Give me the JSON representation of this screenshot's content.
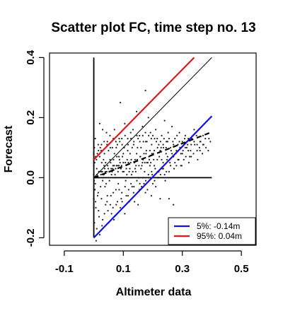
{
  "chart_data": {
    "type": "scatter",
    "title": "Scatter plot FC, time step no. 13",
    "xlabel": "Altimeter data",
    "ylabel": "Forecast",
    "xlim": [
      -0.15,
      0.55
    ],
    "ylim": [
      -0.225,
      0.415
    ],
    "x_ticks": [
      -0.1,
      0.1,
      0.3,
      0.5
    ],
    "x_tick_labels": [
      "-0.1",
      "0.1",
      "0.3",
      "0.5"
    ],
    "y_ticks": [
      -0.2,
      0.0,
      0.2,
      0.4
    ],
    "y_tick_labels": [
      "-0.2",
      "0.0",
      "0.2",
      "0.4"
    ],
    "grid": false,
    "legend": {
      "placement": "bottom-right",
      "entries": [
        {
          "label": "5%: -0.14m",
          "color": "#1010e0"
        },
        {
          "label": "95%:  0.04m",
          "color": "#dd1a1a"
        }
      ]
    },
    "reference_lines": [
      {
        "kind": "vertical",
        "x": 0.0,
        "y_from": -0.2,
        "y_to": 0.4,
        "color": "#000000",
        "style": "solid"
      },
      {
        "kind": "horizontal",
        "y": 0.0,
        "x_from": 0.0,
        "x_to": 0.4,
        "color": "#000000",
        "style": "solid"
      },
      {
        "kind": "segment",
        "x1": 0.0,
        "y1": 0.0,
        "x2": 0.4,
        "y2": 0.4,
        "color": "#000000",
        "style": "solid",
        "width": 1
      },
      {
        "kind": "segment",
        "x1": 0.0,
        "y1": 0.06,
        "x2": 0.34,
        "y2": 0.4,
        "color": "#dd1a1a",
        "style": "solid",
        "width": 2.2
      },
      {
        "kind": "segment",
        "x1": 0.0,
        "y1": -0.2,
        "x2": 0.4,
        "y2": 0.205,
        "color": "#1010e0",
        "style": "solid",
        "width": 2.2
      },
      {
        "kind": "segment",
        "x1": 0.0,
        "y1": 0.0,
        "x2": 0.4,
        "y2": 0.152,
        "color": "#000000",
        "style": "dashed",
        "width": 2.2
      }
    ],
    "points": [
      [
        0.0,
        0.01
      ],
      [
        0.005,
        -0.02
      ],
      [
        0.01,
        0.03
      ],
      [
        0.015,
        -0.05
      ],
      [
        0.02,
        0.07
      ],
      [
        0.025,
        0.02
      ],
      [
        0.03,
        -0.01
      ],
      [
        0.035,
        0.12
      ],
      [
        0.04,
        0.05
      ],
      [
        0.045,
        -0.08
      ],
      [
        0.05,
        0.09
      ],
      [
        0.055,
        0.14
      ],
      [
        0.06,
        -0.12
      ],
      [
        0.065,
        0.04
      ],
      [
        0.07,
        0.16
      ],
      [
        0.075,
        -0.04
      ],
      [
        0.08,
        0.11
      ],
      [
        0.085,
        0.07
      ],
      [
        0.09,
        -0.1
      ],
      [
        0.095,
        0.13
      ],
      [
        0.1,
        0.05
      ],
      [
        0.105,
        0.18
      ],
      [
        0.11,
        -0.06
      ],
      [
        0.115,
        0.09
      ],
      [
        0.12,
        0.02
      ],
      [
        0.125,
        0.15
      ],
      [
        0.13,
        -0.03
      ],
      [
        0.135,
        0.11
      ],
      [
        0.14,
        0.06
      ],
      [
        0.145,
        0.22
      ],
      [
        0.15,
        -0.09
      ],
      [
        0.155,
        0.14
      ],
      [
        0.16,
        0.03
      ],
      [
        0.165,
        0.17
      ],
      [
        0.17,
        0.08
      ],
      [
        0.175,
        -0.05
      ],
      [
        0.18,
        0.12
      ],
      [
        0.185,
        0.2
      ],
      [
        0.19,
        0.04
      ],
      [
        0.195,
        0.13
      ],
      [
        0.2,
        -0.02
      ],
      [
        0.205,
        0.09
      ],
      [
        0.21,
        0.16
      ],
      [
        0.215,
        0.06
      ],
      [
        0.22,
        0.11
      ],
      [
        0.225,
        -0.07
      ],
      [
        0.23,
        0.14
      ],
      [
        0.235,
        0.05
      ],
      [
        0.24,
        0.19
      ],
      [
        0.245,
        0.08
      ],
      [
        0.25,
        0.12
      ],
      [
        0.255,
        0.02
      ],
      [
        0.26,
        0.1
      ],
      [
        0.265,
        0.17
      ],
      [
        0.27,
        0.07
      ],
      [
        0.275,
        0.13
      ],
      [
        0.28,
        0.04
      ],
      [
        0.285,
        0.11
      ],
      [
        0.29,
        0.15
      ],
      [
        0.295,
        0.08
      ],
      [
        0.3,
        0.12
      ],
      [
        0.305,
        0.06
      ],
      [
        0.31,
        0.14
      ],
      [
        0.315,
        0.1
      ],
      [
        0.32,
        0.13
      ],
      [
        0.325,
        0.07
      ],
      [
        0.33,
        0.11
      ],
      [
        0.34,
        0.16
      ],
      [
        0.35,
        0.09
      ],
      [
        0.36,
        0.12
      ],
      [
        0.37,
        0.14
      ],
      [
        0.38,
        0.1
      ],
      [
        0.39,
        0.13
      ],
      [
        0.0,
        -0.07
      ],
      [
        0.003,
        0.05
      ],
      [
        0.007,
        -0.1
      ],
      [
        0.012,
        0.08
      ],
      [
        0.018,
        -0.13
      ],
      [
        0.022,
        0.1
      ],
      [
        0.028,
        -0.16
      ],
      [
        0.033,
        0.06
      ],
      [
        0.038,
        -0.03
      ],
      [
        0.043,
        0.15
      ],
      [
        0.048,
        -0.11
      ],
      [
        0.052,
        0.02
      ],
      [
        0.058,
        -0.06
      ],
      [
        0.063,
        0.1
      ],
      [
        0.068,
        -0.14
      ],
      [
        0.072,
        0.01
      ],
      [
        0.078,
        0.07
      ],
      [
        0.083,
        -0.02
      ],
      [
        0.088,
        0.12
      ],
      [
        0.093,
        -0.07
      ],
      [
        0.098,
        0.02
      ],
      [
        0.103,
        0.1
      ],
      [
        0.108,
        -0.01
      ],
      [
        0.113,
        0.06
      ],
      [
        0.118,
        -0.04
      ],
      [
        0.123,
        0.08
      ],
      [
        0.128,
        0.01
      ],
      [
        0.133,
        0.16
      ],
      [
        0.138,
        -0.08
      ],
      [
        0.143,
        0.04
      ],
      [
        0.148,
        0.1
      ],
      [
        0.152,
        0.0
      ],
      [
        0.158,
        0.07
      ],
      [
        0.162,
        -0.03
      ],
      [
        0.168,
        0.12
      ],
      [
        0.172,
        0.02
      ],
      [
        0.178,
        0.09
      ],
      [
        0.182,
        -0.04
      ],
      [
        0.188,
        0.06
      ],
      [
        0.192,
        0.15
      ],
      [
        0.198,
        0.01
      ],
      [
        0.202,
        0.08
      ],
      [
        0.208,
        0.03
      ],
      [
        0.212,
        0.12
      ],
      [
        0.218,
        0.0
      ],
      [
        0.222,
        0.07
      ],
      [
        0.228,
        0.1
      ],
      [
        0.232,
        0.03
      ],
      [
        0.238,
        0.13
      ],
      [
        0.242,
        -0.01
      ],
      [
        0.248,
        0.06
      ],
      [
        0.252,
        0.15
      ],
      [
        0.258,
        0.05
      ],
      [
        0.262,
        0.09
      ],
      [
        0.268,
        0.12
      ],
      [
        0.272,
        0.03
      ],
      [
        0.278,
        0.08
      ],
      [
        0.282,
        0.14
      ],
      [
        0.288,
        0.06
      ],
      [
        0.292,
        0.1
      ],
      [
        0.298,
        0.04
      ],
      [
        0.302,
        0.09
      ],
      [
        0.308,
        0.13
      ],
      [
        0.312,
        0.07
      ],
      [
        0.318,
        0.11
      ],
      [
        0.322,
        0.05
      ],
      [
        0.328,
        0.09
      ],
      [
        0.332,
        0.13
      ],
      [
        0.338,
        0.08
      ],
      [
        0.342,
        0.11
      ],
      [
        0.348,
        0.14
      ],
      [
        0.352,
        0.06
      ],
      [
        0.358,
        0.1
      ],
      [
        0.362,
        0.12
      ],
      [
        0.368,
        0.08
      ],
      [
        0.372,
        0.11
      ],
      [
        0.378,
        0.13
      ],
      [
        0.388,
        0.09
      ],
      [
        0.395,
        0.12
      ],
      [
        0.005,
        0.13
      ],
      [
        0.01,
        -0.17
      ],
      [
        0.015,
        0.11
      ],
      [
        0.02,
        -0.19
      ],
      [
        0.025,
        0.09
      ],
      [
        0.03,
        -0.14
      ],
      [
        0.035,
        0.04
      ],
      [
        0.04,
        -0.09
      ],
      [
        0.045,
        0.11
      ],
      [
        0.05,
        -0.15
      ],
      [
        0.055,
        0.06
      ],
      [
        0.06,
        0.01
      ],
      [
        0.065,
        -0.1
      ],
      [
        0.07,
        0.08
      ],
      [
        0.075,
        0.12
      ],
      [
        0.08,
        -0.08
      ],
      [
        0.085,
        0.04
      ],
      [
        0.09,
        0.15
      ],
      [
        0.095,
        -0.05
      ],
      [
        0.1,
        0.08
      ],
      [
        0.105,
        -0.12
      ],
      [
        0.11,
        0.03
      ],
      [
        0.115,
        0.13
      ],
      [
        0.12,
        -0.08
      ],
      [
        0.125,
        0.05
      ],
      [
        0.13,
        0.1
      ],
      [
        0.135,
        -0.05
      ],
      [
        0.14,
        0.03
      ],
      [
        0.145,
        0.08
      ],
      [
        0.15,
        0.13
      ],
      [
        0.155,
        -0.04
      ],
      [
        0.16,
        0.1
      ],
      [
        0.165,
        0.05
      ],
      [
        0.17,
        -0.02
      ],
      [
        0.175,
        0.15
      ],
      [
        0.18,
        0.05
      ],
      [
        0.185,
        0.01
      ],
      [
        0.19,
        0.09
      ],
      [
        0.195,
        -0.06
      ],
      [
        0.2,
        0.14
      ],
      [
        0.205,
        0.04
      ],
      [
        0.21,
        -0.03
      ],
      [
        0.215,
        0.13
      ],
      [
        0.22,
        0.02
      ],
      [
        0.225,
        0.09
      ],
      [
        0.23,
        0.06
      ],
      [
        0.235,
        0.11
      ],
      [
        0.24,
        0.01
      ],
      [
        0.245,
        0.1
      ],
      [
        0.25,
        0.07
      ],
      [
        0.255,
        0.13
      ],
      [
        0.26,
        0.04
      ],
      [
        0.265,
        0.08
      ],
      [
        0.27,
        0.11
      ],
      [
        0.275,
        0.05
      ],
      [
        0.28,
        0.09
      ],
      [
        0.285,
        0.06
      ],
      [
        0.29,
        0.12
      ],
      [
        0.295,
        0.04
      ],
      [
        0.3,
        0.08
      ],
      [
        0.31,
        0.1
      ],
      [
        0.32,
        0.09
      ],
      [
        0.33,
        0.07
      ],
      [
        0.34,
        0.12
      ],
      [
        0.35,
        0.11
      ],
      [
        0.36,
        0.09
      ],
      [
        0.37,
        0.11
      ],
      [
        0.175,
        0.29
      ],
      [
        0.09,
        0.25
      ],
      [
        0.008,
        -0.21
      ],
      [
        0.27,
        -0.09
      ],
      [
        0.255,
        -0.07
      ],
      [
        0.02,
        0.18
      ],
      [
        0.03,
        0.16
      ],
      [
        0.0,
        0.04
      ],
      [
        0.004,
        -0.04
      ],
      [
        0.009,
        0.06
      ],
      [
        0.013,
        -0.06
      ],
      [
        0.017,
        0.02
      ],
      [
        0.023,
        -0.03
      ],
      [
        0.027,
        0.05
      ],
      [
        0.032,
        0.0
      ],
      [
        0.037,
        0.03
      ],
      [
        0.042,
        -0.02
      ],
      [
        0.047,
        0.04
      ],
      [
        0.053,
        -0.01
      ],
      [
        0.057,
        0.05
      ],
      [
        0.062,
        0.02
      ],
      [
        0.067,
        0.06
      ],
      [
        0.073,
        0.0
      ],
      [
        0.077,
        0.04
      ],
      [
        0.082,
        0.02
      ],
      [
        0.087,
        0.06
      ],
      [
        0.092,
        0.03
      ],
      [
        0.097,
        0.07
      ],
      [
        0.102,
        0.02
      ],
      [
        0.107,
        0.05
      ],
      [
        0.112,
        0.01
      ],
      [
        0.117,
        0.05
      ],
      [
        0.122,
        0.03
      ],
      [
        0.127,
        0.06
      ],
      [
        0.132,
        0.02
      ],
      [
        0.137,
        0.05
      ],
      [
        0.142,
        0.02
      ],
      [
        0.147,
        0.06
      ],
      [
        0.153,
        0.04
      ],
      [
        0.157,
        0.07
      ],
      [
        0.163,
        0.04
      ],
      [
        0.167,
        0.06
      ],
      [
        0.173,
        0.05
      ],
      [
        0.177,
        0.08
      ],
      [
        0.183,
        0.05
      ],
      [
        0.187,
        0.07
      ],
      [
        0.193,
        0.05
      ],
      [
        0.197,
        0.08
      ],
      [
        0.203,
        0.06
      ],
      [
        0.001,
        -0.01
      ],
      [
        0.006,
        0.0
      ],
      [
        0.011,
        0.01
      ],
      [
        0.014,
        0.0
      ],
      [
        0.019,
        0.02
      ],
      [
        0.024,
        0.01
      ],
      [
        0.029,
        0.02
      ],
      [
        0.034,
        0.01
      ],
      [
        0.039,
        0.02
      ],
      [
        0.044,
        0.02
      ],
      [
        0.049,
        0.03
      ],
      [
        0.054,
        0.02
      ],
      [
        0.059,
        0.03
      ],
      [
        0.064,
        0.03
      ],
      [
        0.069,
        0.04
      ],
      [
        0.074,
        0.03
      ],
      [
        0.079,
        0.04
      ],
      [
        0.084,
        0.04
      ],
      [
        0.089,
        0.05
      ],
      [
        0.094,
        0.04
      ],
      [
        0.0,
        -0.1
      ],
      [
        0.0,
        0.08
      ],
      [
        0.002,
        -0.15
      ],
      [
        0.002,
        0.1
      ],
      [
        0.006,
        -0.08
      ],
      [
        0.006,
        0.07
      ],
      [
        0.016,
        -0.11
      ],
      [
        0.016,
        0.09
      ],
      [
        0.026,
        -0.07
      ],
      [
        0.026,
        0.11
      ],
      [
        0.036,
        -0.12
      ],
      [
        0.036,
        0.08
      ],
      [
        0.046,
        -0.06
      ],
      [
        0.046,
        0.12
      ],
      [
        0.056,
        -0.09
      ],
      [
        0.056,
        0.1
      ],
      [
        0.066,
        -0.05
      ],
      [
        0.066,
        0.13
      ],
      [
        0.076,
        -0.09
      ],
      [
        0.076,
        0.1
      ],
      [
        0.086,
        -0.04
      ],
      [
        0.086,
        0.13
      ],
      [
        0.096,
        -0.08
      ],
      [
        0.096,
        0.11
      ],
      [
        0.106,
        -0.03
      ],
      [
        0.106,
        0.14
      ],
      [
        0.116,
        -0.06
      ],
      [
        0.116,
        0.11
      ],
      [
        0.126,
        -0.02
      ],
      [
        0.126,
        0.13
      ],
      [
        0.136,
        -0.03
      ],
      [
        0.136,
        0.12
      ],
      [
        0.146,
        -0.01
      ],
      [
        0.146,
        0.14
      ],
      [
        0.156,
        -0.02
      ],
      [
        0.156,
        0.12
      ],
      [
        0.166,
        0.0
      ],
      [
        0.166,
        0.14
      ],
      [
        0.176,
        -0.01
      ],
      [
        0.176,
        0.12
      ],
      [
        0.186,
        0.0
      ],
      [
        0.186,
        0.14
      ],
      [
        0.196,
        0.02
      ],
      [
        0.196,
        0.11
      ],
      [
        0.206,
        -0.01
      ],
      [
        0.206,
        0.13
      ],
      [
        0.216,
        0.02
      ],
      [
        0.216,
        0.1
      ],
      [
        0.226,
        0.01
      ],
      [
        0.226,
        0.12
      ],
      [
        0.236,
        0.03
      ],
      [
        0.236,
        0.1
      ],
      [
        0.246,
        0.02
      ],
      [
        0.246,
        0.12
      ]
    ]
  }
}
